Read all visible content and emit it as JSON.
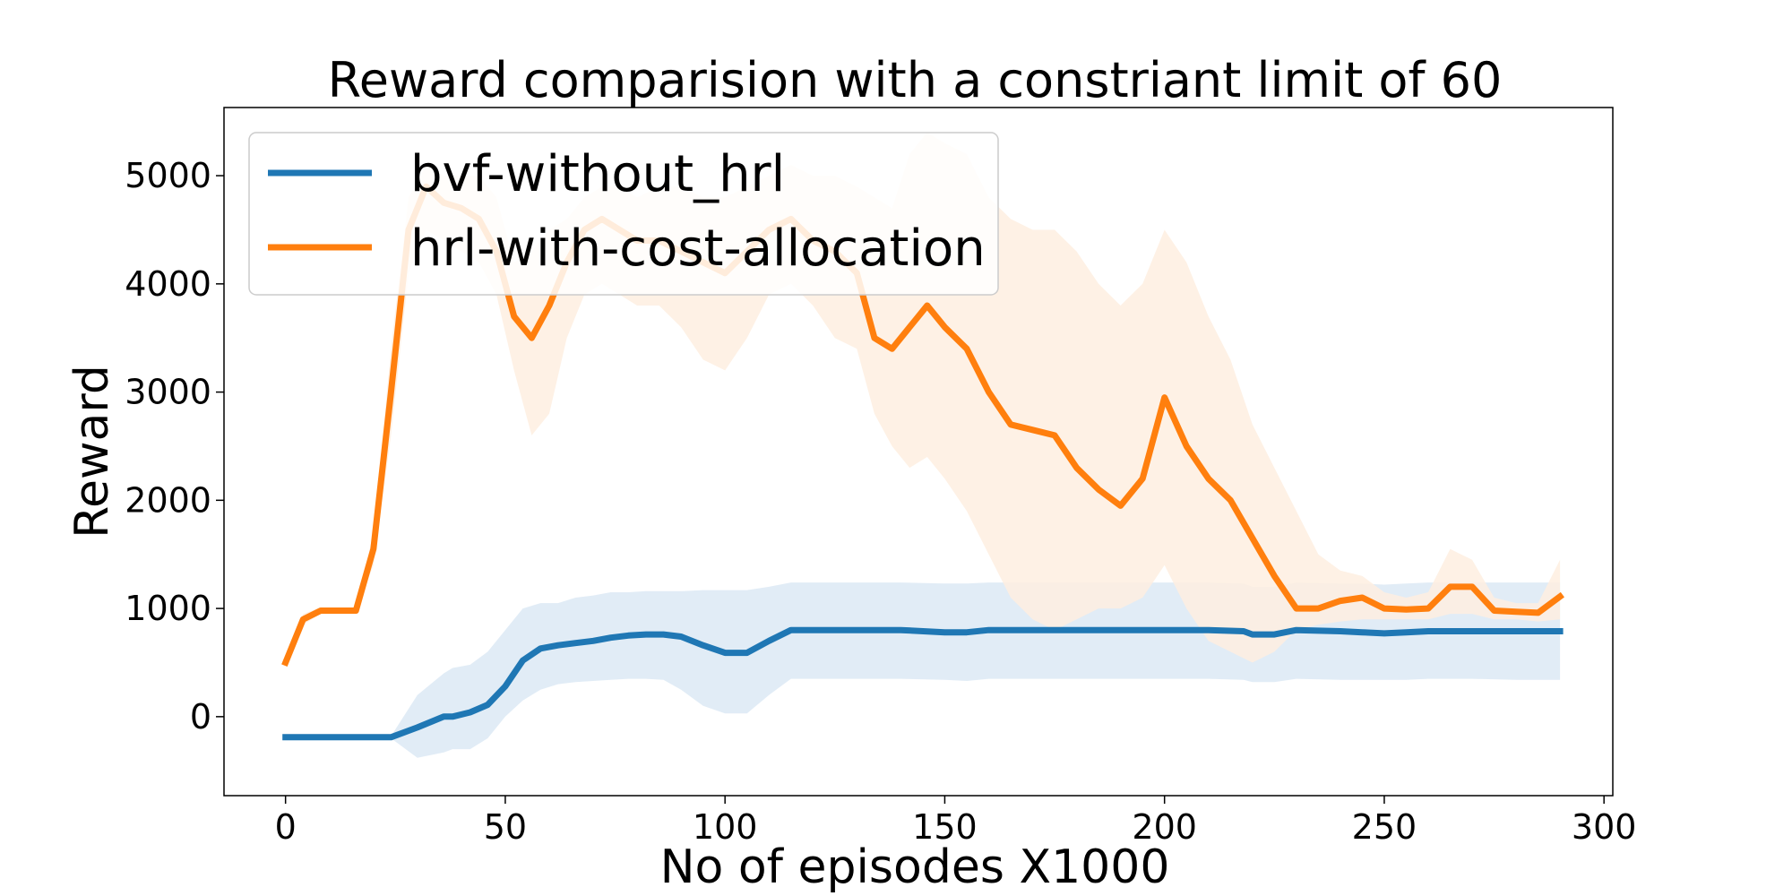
{
  "chart_data": {
    "type": "line",
    "title": "Reward comparision with a constriant limit of 60",
    "xlabel": "No of episodes X1000",
    "ylabel": "Reward",
    "xlim": [
      -14,
      302
    ],
    "ylim": [
      -730,
      5630
    ],
    "xticks": [
      0,
      50,
      100,
      150,
      200,
      250,
      300
    ],
    "yticks": [
      0,
      1000,
      2000,
      3000,
      4000,
      5000
    ],
    "grid": false,
    "legend_position": "upper-left",
    "series": [
      {
        "name": "bvf-without_hrl",
        "color": "#1f77b4",
        "band_color": "#dce9f5",
        "x": [
          0,
          10,
          20,
          24,
          30,
          36,
          38,
          42,
          46,
          50,
          54,
          58,
          62,
          66,
          70,
          74,
          78,
          82,
          86,
          90,
          95,
          100,
          105,
          110,
          115,
          120,
          130,
          140,
          150,
          155,
          160,
          170,
          180,
          190,
          200,
          210,
          218,
          220,
          225,
          230,
          240,
          245,
          250,
          255,
          260,
          270,
          280,
          290
        ],
        "y": [
          -190,
          -190,
          -190,
          -190,
          -100,
          0,
          0,
          40,
          110,
          280,
          520,
          630,
          660,
          680,
          700,
          730,
          750,
          760,
          760,
          740,
          660,
          590,
          590,
          700,
          800,
          800,
          800,
          800,
          780,
          780,
          800,
          800,
          800,
          800,
          800,
          800,
          790,
          760,
          760,
          800,
          790,
          780,
          770,
          780,
          790,
          790,
          790,
          790
        ],
        "lower": [
          -190,
          -190,
          -190,
          -200,
          -380,
          -330,
          -300,
          -300,
          -200,
          0,
          150,
          250,
          300,
          320,
          330,
          340,
          350,
          350,
          340,
          250,
          100,
          30,
          30,
          200,
          350,
          350,
          350,
          350,
          340,
          330,
          350,
          350,
          350,
          350,
          350,
          350,
          340,
          320,
          320,
          350,
          340,
          340,
          340,
          340,
          350,
          350,
          340,
          340
        ],
        "upper": [
          -190,
          -190,
          -190,
          -180,
          200,
          400,
          450,
          480,
          600,
          800,
          1000,
          1050,
          1050,
          1100,
          1120,
          1150,
          1150,
          1160,
          1160,
          1160,
          1170,
          1170,
          1170,
          1200,
          1240,
          1240,
          1240,
          1240,
          1230,
          1230,
          1240,
          1240,
          1240,
          1240,
          1240,
          1240,
          1230,
          1200,
          1200,
          1240,
          1230,
          1230,
          1220,
          1230,
          1240,
          1240,
          1240,
          1240
        ]
      },
      {
        "name": "hrl-with-cost-allocation",
        "color": "#ff7f0e",
        "band_color": "#feeee0",
        "x": [
          0,
          4,
          8,
          12,
          16,
          20,
          24,
          28,
          32,
          36,
          40,
          44,
          48,
          52,
          56,
          60,
          64,
          68,
          72,
          76,
          80,
          85,
          90,
          95,
          100,
          105,
          110,
          115,
          120,
          125,
          130,
          134,
          138,
          142,
          146,
          150,
          155,
          160,
          165,
          170,
          175,
          180,
          185,
          190,
          195,
          200,
          205,
          210,
          215,
          220,
          225,
          230,
          235,
          240,
          245,
          250,
          255,
          260,
          265,
          270,
          275,
          280,
          285,
          290
        ],
        "y": [
          500,
          900,
          980,
          980,
          980,
          1550,
          3000,
          4500,
          4900,
          4750,
          4700,
          4600,
          4300,
          3700,
          3500,
          3800,
          4200,
          4500,
          4600,
          4500,
          4400,
          4400,
          4300,
          4200,
          4100,
          4300,
          4500,
          4600,
          4400,
          4300,
          4100,
          3500,
          3400,
          3600,
          3800,
          3600,
          3400,
          3000,
          2700,
          2650,
          2600,
          2300,
          2100,
          1950,
          2200,
          2950,
          2500,
          2200,
          2000,
          1650,
          1300,
          1000,
          1000,
          1070,
          1100,
          1000,
          990,
          1000,
          1200,
          1200,
          980,
          970,
          960,
          1110
        ],
        "lower": [
          500,
          850,
          950,
          970,
          970,
          1400,
          2600,
          4100,
          4500,
          4400,
          4300,
          4200,
          3900,
          3200,
          2600,
          2800,
          3500,
          3900,
          4000,
          3900,
          3800,
          3800,
          3600,
          3300,
          3200,
          3500,
          3900,
          4000,
          3800,
          3500,
          3400,
          2800,
          2500,
          2300,
          2400,
          2200,
          1900,
          1500,
          1100,
          900,
          800,
          900,
          1000,
          1000,
          1100,
          1400,
          1000,
          700,
          600,
          500,
          600,
          800,
          850,
          880,
          900,
          900,
          900,
          900,
          950,
          950,
          900,
          900,
          880,
          900
        ],
        "upper": [
          500,
          950,
          1010,
          1000,
          1000,
          1700,
          3400,
          4800,
          5100,
          5000,
          5000,
          5000,
          4800,
          4200,
          4300,
          4500,
          4600,
          4800,
          4900,
          4900,
          4800,
          4900,
          4900,
          4800,
          4800,
          4900,
          5000,
          5100,
          5000,
          5000,
          4900,
          4800,
          4700,
          5200,
          5400,
          5300,
          5200,
          4800,
          4600,
          4500,
          4500,
          4300,
          4000,
          3800,
          4000,
          4500,
          4200,
          3700,
          3300,
          2700,
          2300,
          1900,
          1500,
          1350,
          1300,
          1150,
          1100,
          1150,
          1550,
          1450,
          1100,
          1050,
          1050,
          1450
        ]
      }
    ]
  }
}
